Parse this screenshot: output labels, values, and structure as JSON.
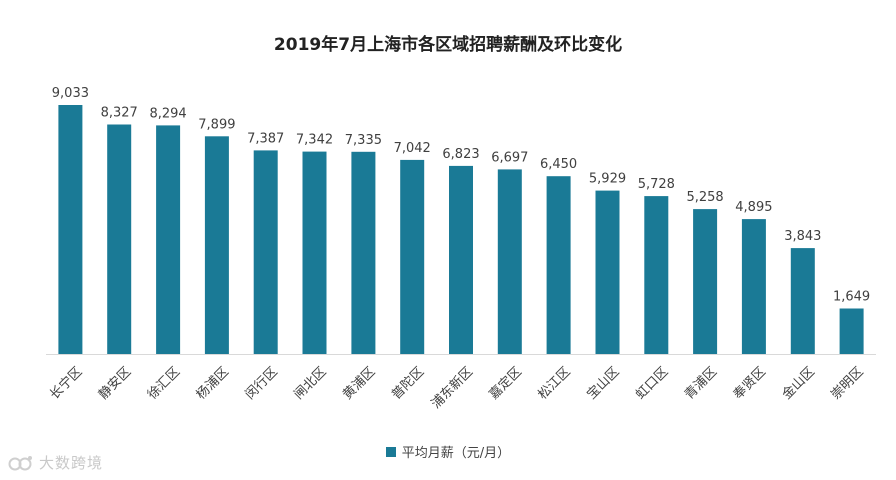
{
  "chart_data": {
    "type": "bar",
    "title": "2019年7月上海市各区域招聘薪酬及环比变化",
    "categories": [
      "长宁区",
      "静安区",
      "徐汇区",
      "杨浦区",
      "闵行区",
      "闸北区",
      "黄浦区",
      "普陀区",
      "浦东新区",
      "嘉定区",
      "松江区",
      "宝山区",
      "虹口区",
      "青浦区",
      "奉贤区",
      "金山区",
      "崇明区"
    ],
    "series": [
      {
        "name": "平均月薪（元/月）",
        "values": [
          9033,
          8327,
          8294,
          7899,
          7387,
          7342,
          7335,
          7042,
          6823,
          6697,
          6450,
          5929,
          5728,
          5258,
          4895,
          3843,
          1649
        ],
        "labels": [
          "9,033",
          "8,327",
          "8,294",
          "7,899",
          "7,387",
          "7,342",
          "7,335",
          "7,042",
          "6,823",
          "6,697",
          "6,450",
          "5,929",
          "5,728",
          "5,258",
          "4,895",
          "3,843",
          "1,649"
        ]
      }
    ],
    "xlabel": "",
    "ylabel": "",
    "ylim": [
      0,
      9033
    ],
    "grid": false,
    "legend_position": "bottom"
  },
  "colors": {
    "bar": "#1a7a96",
    "axis": "#d9d9d9",
    "label": "#404040"
  },
  "watermark": {
    "text": "大数跨境"
  }
}
